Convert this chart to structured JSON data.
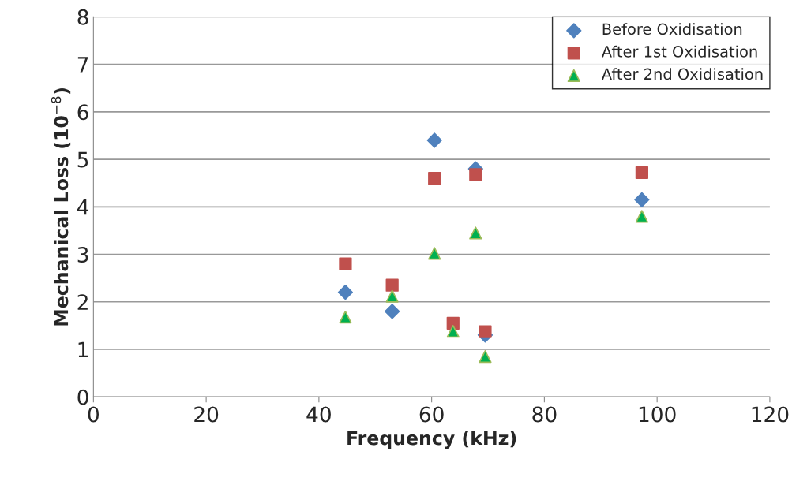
{
  "chart_data": {
    "type": "scatter",
    "xlabel": "Frequency (kHz)",
    "ylabel": "Mechanical Loss (10$^{−8}$)",
    "xlim": [
      0,
      120
    ],
    "xticks": [
      0,
      20,
      40,
      60,
      80,
      100,
      120
    ],
    "ylim": [
      0,
      8
    ],
    "yticks": [
      0,
      1,
      2,
      3,
      4,
      5,
      6,
      7,
      8
    ],
    "grid": "y",
    "legend": "top right",
    "series": [
      {
        "name": "Before Oxidisation",
        "color": "#4f81bd",
        "marker": "diamond",
        "x": [
          44.7,
          53,
          60.5,
          67.8,
          69.5,
          97.3
        ],
        "values": [
          2.2,
          1.8,
          5.4,
          4.8,
          1.3,
          4.15
        ]
      },
      {
        "name": "After 1st Oxidisation",
        "color": "#c0504d",
        "marker": "square",
        "x": [
          44.7,
          53,
          60.5,
          63.8,
          67.8,
          69.5,
          97.3
        ],
        "values": [
          2.8,
          2.35,
          4.6,
          1.55,
          4.68,
          1.37,
          4.72
        ]
      },
      {
        "name": "After 2nd Oxidisation",
        "color": "#00b050",
        "marker": "triangle",
        "x": [
          44.7,
          53,
          60.5,
          63.8,
          67.8,
          69.5,
          97.3
        ],
        "values": [
          1.68,
          2.12,
          3.02,
          1.38,
          3.45,
          0.85,
          3.8
        ]
      }
    ]
  }
}
